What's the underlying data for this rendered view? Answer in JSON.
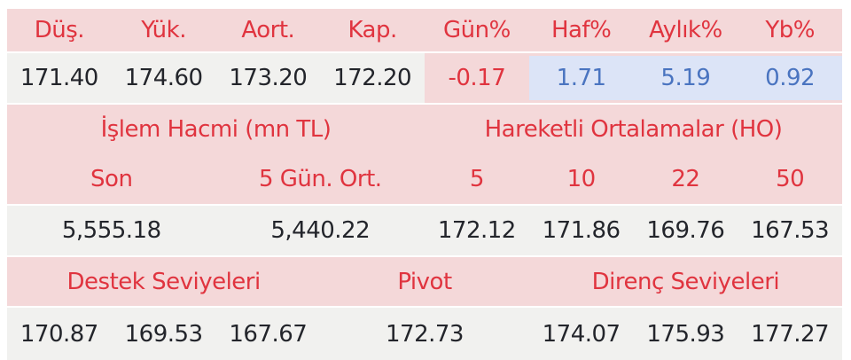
{
  "colors": {
    "pink_bg": "#f4d8d9",
    "gray_bg": "#f1f1ef",
    "blue_cell_bg": "#dce4f7",
    "red_text": "#e0343f",
    "blue_text": "#4a74c0",
    "dark_text": "#23252b"
  },
  "price_row": {
    "headers": [
      "Düş.",
      "Yük.",
      "Aort.",
      "Kap.",
      "Gün%",
      "Haf%",
      "Aylık%",
      "Yb%"
    ],
    "values": [
      "171.40",
      "174.60",
      "173.20",
      "172.20",
      "-0.17",
      "1.71",
      "5.19",
      "0.92"
    ]
  },
  "volume_section": {
    "title": "İşlem Hacmi (mn TL)",
    "headers": [
      "Son",
      "5 Gün. Ort."
    ],
    "values": [
      "5,555.18",
      "5,440.22"
    ]
  },
  "ma_section": {
    "title": "Hareketli Ortalamalar (HO)",
    "headers": [
      "5",
      "10",
      "22",
      "50"
    ],
    "values": [
      "172.12",
      "171.86",
      "169.76",
      "167.53"
    ]
  },
  "pivot_section": {
    "support_title": "Destek Seviyeleri",
    "pivot_title": "Pivot",
    "resistance_title": "Direnç Seviyeleri",
    "support_values": [
      "170.87",
      "169.53",
      "167.67"
    ],
    "pivot_value": "172.73",
    "resistance_values": [
      "174.07",
      "175.93",
      "177.27"
    ]
  }
}
